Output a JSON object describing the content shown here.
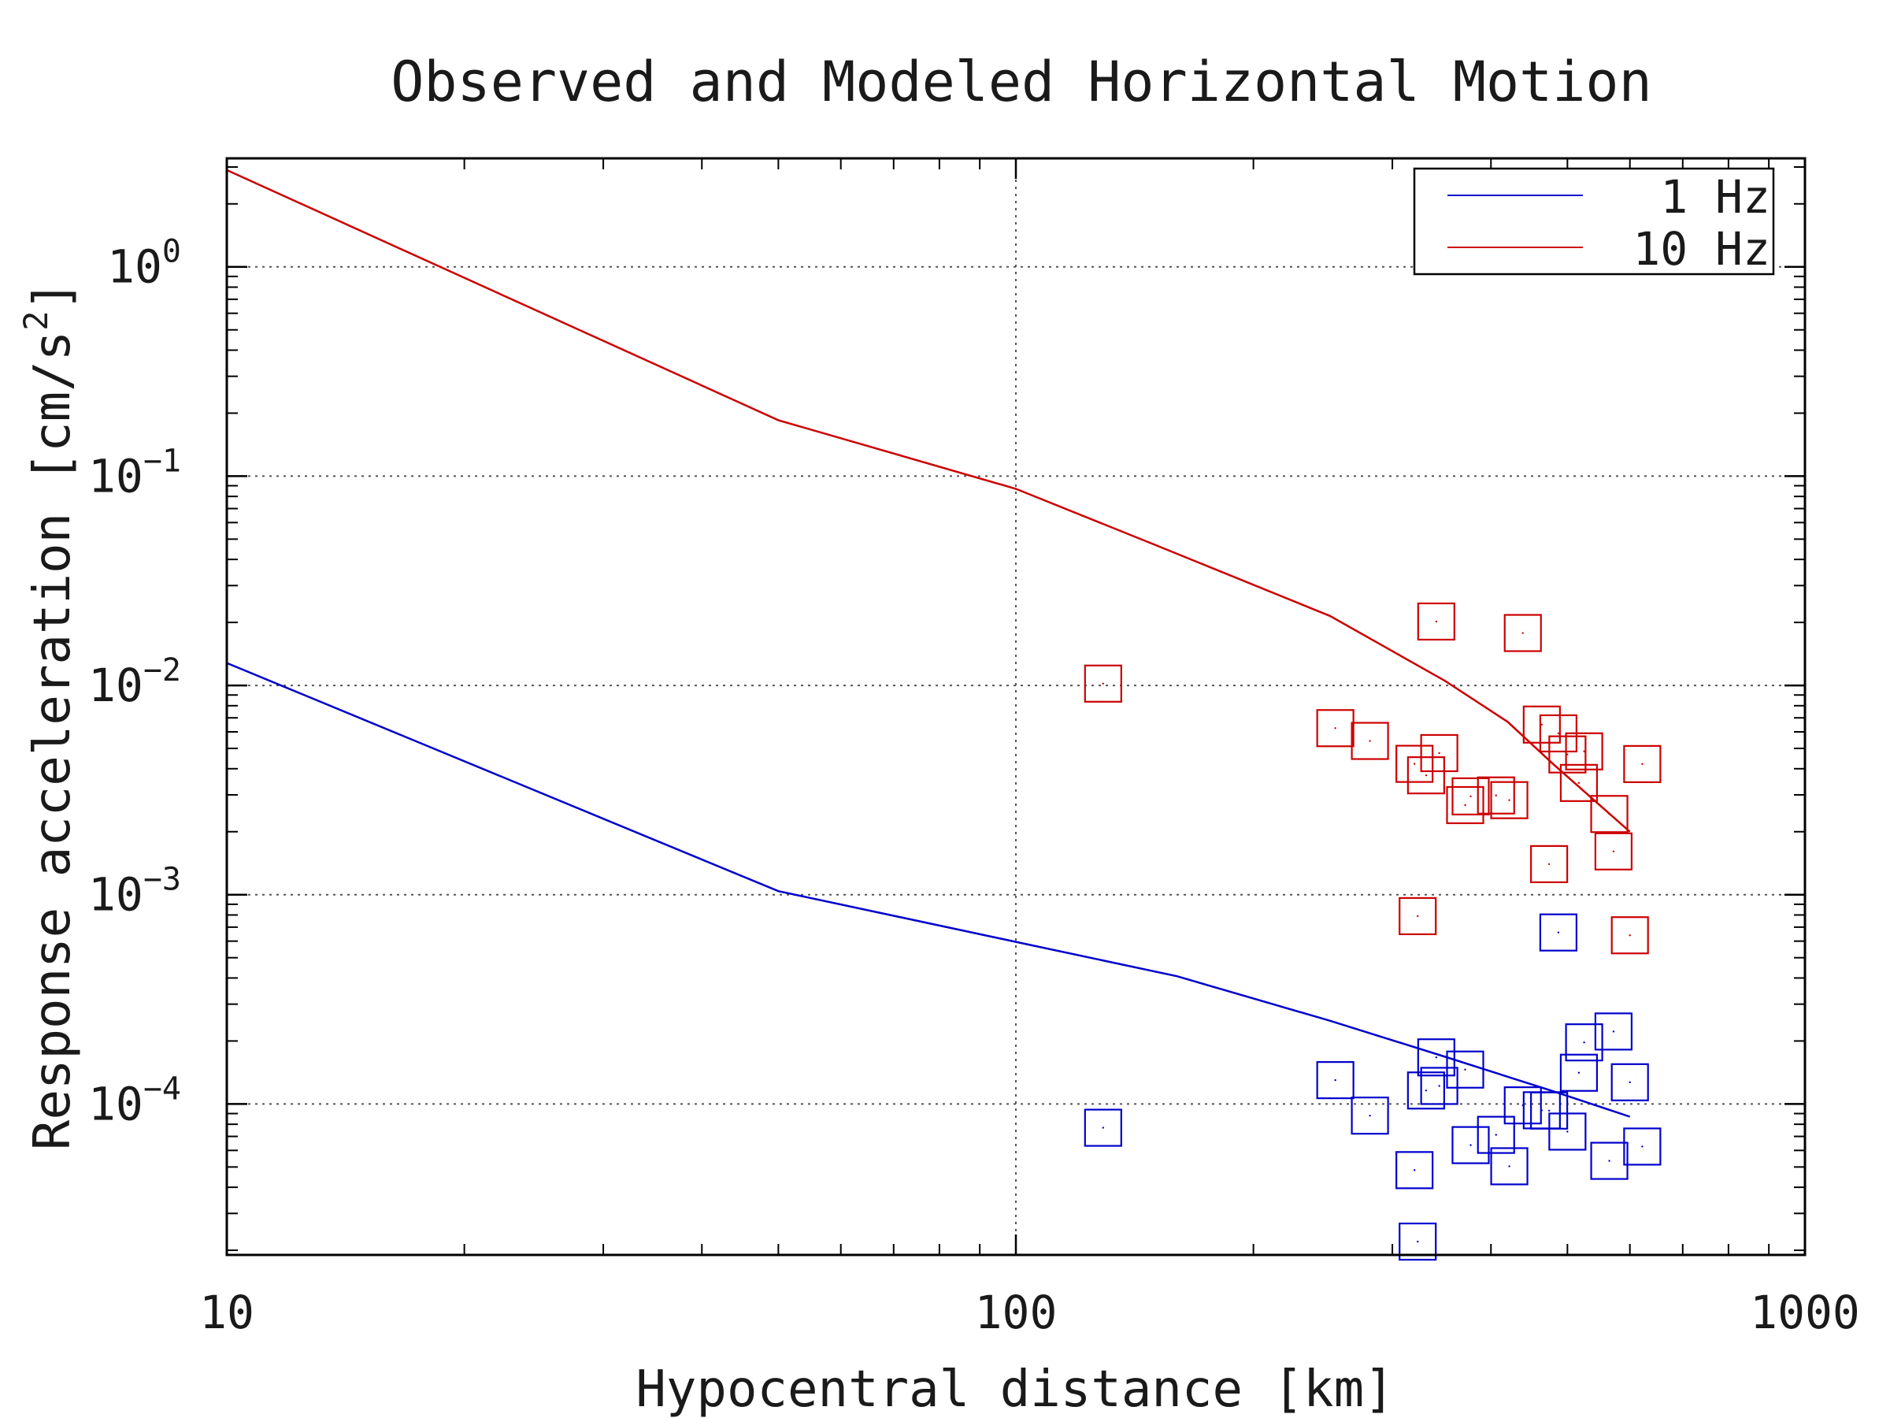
{
  "chart_data": {
    "type": "scatter",
    "title": "Observed and Modeled Horizontal Motion",
    "xlabel": "Hypocentral distance [km]",
    "ylabel": "Response acceleration [cm/s",
    "ylabel_sup": "2",
    "ylabel_end": "]",
    "x_scale": "log",
    "y_scale": "log",
    "xlim": [
      10,
      1000
    ],
    "ylim": [
      1.9e-05,
      3.3
    ],
    "x_ticks": [
      {
        "value": 10,
        "label": "10"
      },
      {
        "value": 100,
        "label": "100"
      },
      {
        "value": 1000,
        "label": "1000"
      }
    ],
    "y_ticks": [
      {
        "value": 1,
        "base": "10",
        "exp": "0"
      },
      {
        "value": 0.1,
        "base": "10",
        "exp": "−1"
      },
      {
        "value": 0.01,
        "base": "10",
        "exp": "−2"
      },
      {
        "value": 0.001,
        "base": "10",
        "exp": "−3"
      },
      {
        "value": 0.0001,
        "base": "10",
        "exp": "−4"
      }
    ],
    "grid": true,
    "legend_position": "top-right",
    "series": [
      {
        "name": "1 Hz",
        "color": "#0000cc",
        "model": [
          [
            10,
            0.0128
          ],
          [
            50,
            0.00104
          ],
          [
            100,
            0.000595
          ],
          [
            160,
            0.000408
          ],
          [
            250,
            0.00025
          ],
          [
            350,
            0.000168
          ],
          [
            480,
            0.000115
          ],
          [
            600,
            8.7e-05
          ]
        ],
        "observed": [
          [
            129,
            7.7e-05
          ],
          [
            254,
            0.00013
          ],
          [
            281,
            8.8e-05
          ],
          [
            320,
            4.83e-05
          ],
          [
            323,
            2.2e-05
          ],
          [
            331,
            0.000116
          ],
          [
            341,
            0.000167
          ],
          [
            344,
            0.000122
          ],
          [
            371,
            0.000146
          ],
          [
            377,
            6.36e-05
          ],
          [
            406,
            7.12e-05
          ],
          [
            422,
            5.04e-05
          ],
          [
            439,
            9.85e-05
          ],
          [
            464,
            9.33e-05
          ],
          [
            474,
            9.3e-05
          ],
          [
            487,
            0.00066
          ],
          [
            500,
            7.38e-05
          ],
          [
            517,
            0.000141
          ],
          [
            525,
            0.000197
          ],
          [
            565,
            5.35e-05
          ],
          [
            572,
            0.000222
          ],
          [
            600,
            0.000127
          ],
          [
            622,
            6.26e-05
          ]
        ]
      },
      {
        "name": "10 Hz",
        "color": "#cc0000",
        "model": [
          [
            10,
            2.9
          ],
          [
            50,
            0.185
          ],
          [
            100,
            0.087
          ],
          [
            150,
            0.047
          ],
          [
            250,
            0.0215
          ],
          [
            350,
            0.0105
          ],
          [
            420,
            0.0067
          ],
          [
            480,
            0.0042
          ],
          [
            600,
            0.002
          ]
        ],
        "observed": [
          [
            129,
            0.0102
          ],
          [
            254,
            0.00625
          ],
          [
            281,
            0.00543
          ],
          [
            320,
            0.00422
          ],
          [
            323,
            0.00079
          ],
          [
            331,
            0.00372
          ],
          [
            341,
            0.0202
          ],
          [
            344,
            0.00475
          ],
          [
            371,
            0.00268
          ],
          [
            377,
            0.00295
          ],
          [
            406,
            0.00298
          ],
          [
            422,
            0.00283
          ],
          [
            439,
            0.0178
          ],
          [
            464,
            0.0065
          ],
          [
            474,
            0.0014
          ],
          [
            487,
            0.0059
          ],
          [
            500,
            0.00468
          ],
          [
            517,
            0.00342
          ],
          [
            525,
            0.00484
          ],
          [
            565,
            0.00243
          ],
          [
            572,
            0.00161
          ],
          [
            600,
            0.00064
          ],
          [
            622,
            0.00421
          ]
        ]
      }
    ]
  }
}
